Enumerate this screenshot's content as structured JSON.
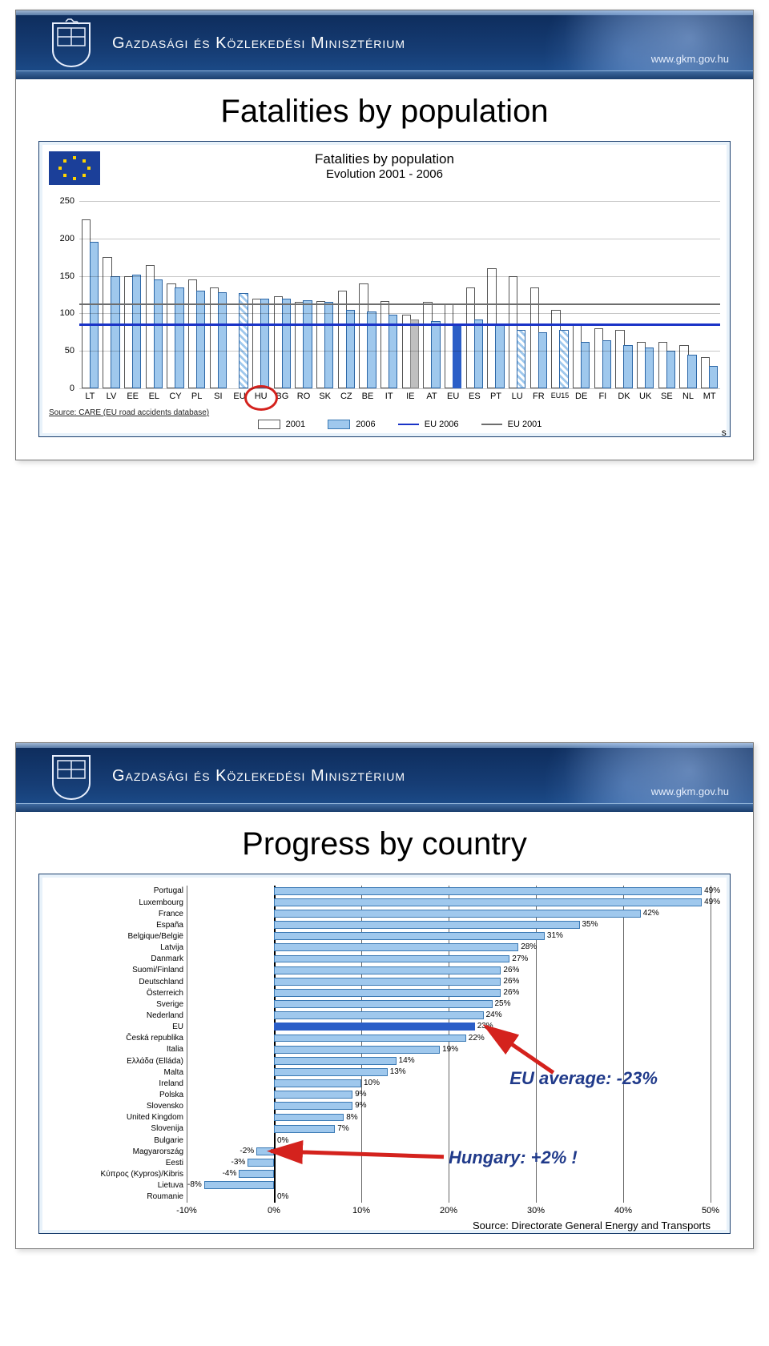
{
  "header": {
    "title": "Gazdasági és Közlekedési Minisztérium",
    "url": "www.gkm.gov.hu"
  },
  "slide1": {
    "title": "Fatalities by population",
    "chart_title": "Fatalities by population",
    "chart_subtitle": "Evolution 2001 - 2006",
    "y_ticks": [
      0,
      50,
      100,
      150,
      200,
      250
    ],
    "y_max": 250,
    "source_left": "Source: CARE (EU road accidents database)",
    "source_right_tail": "s",
    "colors": {
      "bar2006": "#9fc8ed",
      "bar2006_border": "#3a79b4",
      "eu_bar": "#2b5ec7",
      "hu_hatched": true,
      "ref_eu2006": "#1a33c7",
      "ref_eu2001": "#6d6d6d"
    },
    "legend": {
      "yr2001": "2001",
      "yr2006": "2006",
      "eu2006": "EU 2006",
      "eu2001": "EU 2001"
    },
    "eu2006_ref": 87,
    "eu2001_ref": 113,
    "data": [
      {
        "code": "LT",
        "v2001": 225,
        "v2006": 195,
        "style": "n"
      },
      {
        "code": "LV",
        "v2001": 175,
        "v2006": 150,
        "style": "n"
      },
      {
        "code": "EE",
        "v2001": 150,
        "v2006": 152,
        "style": "n"
      },
      {
        "code": "EL",
        "v2001": 165,
        "v2006": 145,
        "style": "n"
      },
      {
        "code": "CY",
        "v2001": 140,
        "v2006": 135,
        "style": "n"
      },
      {
        "code": "PL",
        "v2001": 145,
        "v2006": 130,
        "style": "n"
      },
      {
        "code": "SI",
        "v2001": 135,
        "v2006": 128,
        "style": "n"
      },
      {
        "code": "EU",
        "v2001": null,
        "v2006": 127,
        "style": "hatched"
      },
      {
        "code": "HU",
        "v2001": 120,
        "v2006": 120,
        "style": "n"
      },
      {
        "code": "BG",
        "v2001": 123,
        "v2006": 120,
        "style": "n"
      },
      {
        "code": "RO",
        "v2001": 115,
        "v2006": 118,
        "style": "n"
      },
      {
        "code": "SK",
        "v2001": 117,
        "v2006": 115,
        "style": "n"
      },
      {
        "code": "CZ",
        "v2001": 130,
        "v2006": 105,
        "style": "n"
      },
      {
        "code": "BE",
        "v2001": 140,
        "v2006": 103,
        "style": "n"
      },
      {
        "code": "IT",
        "v2001": 117,
        "v2006": 98,
        "style": "n"
      },
      {
        "code": "IE",
        "v2001": 98,
        "v2006": 92,
        "style": "grey"
      },
      {
        "code": "AT",
        "v2001": 115,
        "v2006": 90,
        "style": "n"
      },
      {
        "code": "EU",
        "v2001": 113,
        "v2006": 87,
        "style": "eu"
      },
      {
        "code": "ES",
        "v2001": 135,
        "v2006": 92,
        "style": "n"
      },
      {
        "code": "PT",
        "v2001": 160,
        "v2006": 85,
        "style": "n"
      },
      {
        "code": "LU",
        "v2001": 150,
        "v2006": 78,
        "style": "hatched"
      },
      {
        "code": "FR",
        "v2001": 135,
        "v2006": 75,
        "style": "n"
      },
      {
        "code": "EU15",
        "v2001": 105,
        "v2006": 78,
        "style": "hatched"
      },
      {
        "code": "DE",
        "v2001": 85,
        "v2006": 62,
        "style": "n"
      },
      {
        "code": "FI",
        "v2001": 80,
        "v2006": 64,
        "style": "n"
      },
      {
        "code": "DK",
        "v2001": 78,
        "v2006": 58,
        "style": "n"
      },
      {
        "code": "UK",
        "v2001": 62,
        "v2006": 55,
        "style": "n"
      },
      {
        "code": "SE",
        "v2001": 62,
        "v2006": 50,
        "style": "n"
      },
      {
        "code": "NL",
        "v2001": 58,
        "v2006": 45,
        "style": "n"
      },
      {
        "code": "MT",
        "v2001": 42,
        "v2006": 30,
        "style": "n"
      }
    ]
  },
  "slide2": {
    "title": "Progress by country",
    "x_min": -10,
    "x_max": 50,
    "x_step": 10,
    "bar_color": "#9fc8ed",
    "bar_border": "#3a79b4",
    "eu_bar_color": "#2b5ec7",
    "annot_eu": "EU average: -23%",
    "annot_hu": "Hungary: +2% !",
    "source": "Source: Directorate General Energy and Transports",
    "rows": [
      {
        "label": "Portugal",
        "v": 49
      },
      {
        "label": "Luxembourg",
        "v": 49
      },
      {
        "label": "France",
        "v": 42
      },
      {
        "label": "España",
        "v": 35
      },
      {
        "label": "Belgique/België",
        "v": 31
      },
      {
        "label": "Latvija",
        "v": 28
      },
      {
        "label": "Danmark",
        "v": 27
      },
      {
        "label": "Suomi/Finland",
        "v": 26
      },
      {
        "label": "Deutschland",
        "v": 26
      },
      {
        "label": "Österreich",
        "v": 26
      },
      {
        "label": "Sverige",
        "v": 25
      },
      {
        "label": "Nederland",
        "v": 24
      },
      {
        "label": "EU",
        "v": 23,
        "eu": true
      },
      {
        "label": "Česká republika",
        "v": 22
      },
      {
        "label": "Italia",
        "v": 19
      },
      {
        "label": "Ελλάδα (Elláda)",
        "v": 14
      },
      {
        "label": "Malta",
        "v": 13
      },
      {
        "label": "Ireland",
        "v": 10
      },
      {
        "label": "Polska",
        "v": 9
      },
      {
        "label": "Slovensko",
        "v": 9
      },
      {
        "label": "United Kingdom",
        "v": 8
      },
      {
        "label": "Slovenija",
        "v": 7
      },
      {
        "label": "Bulgarie",
        "v": 0
      },
      {
        "label": "Magyarország",
        "v": -2
      },
      {
        "label": "Eesti",
        "v": -3
      },
      {
        "label": "Κύπρος (Kypros)/Kibris",
        "v": -4
      },
      {
        "label": "Lietuva",
        "v": -8
      },
      {
        "label": "Roumanie",
        "v": 0
      }
    ]
  }
}
